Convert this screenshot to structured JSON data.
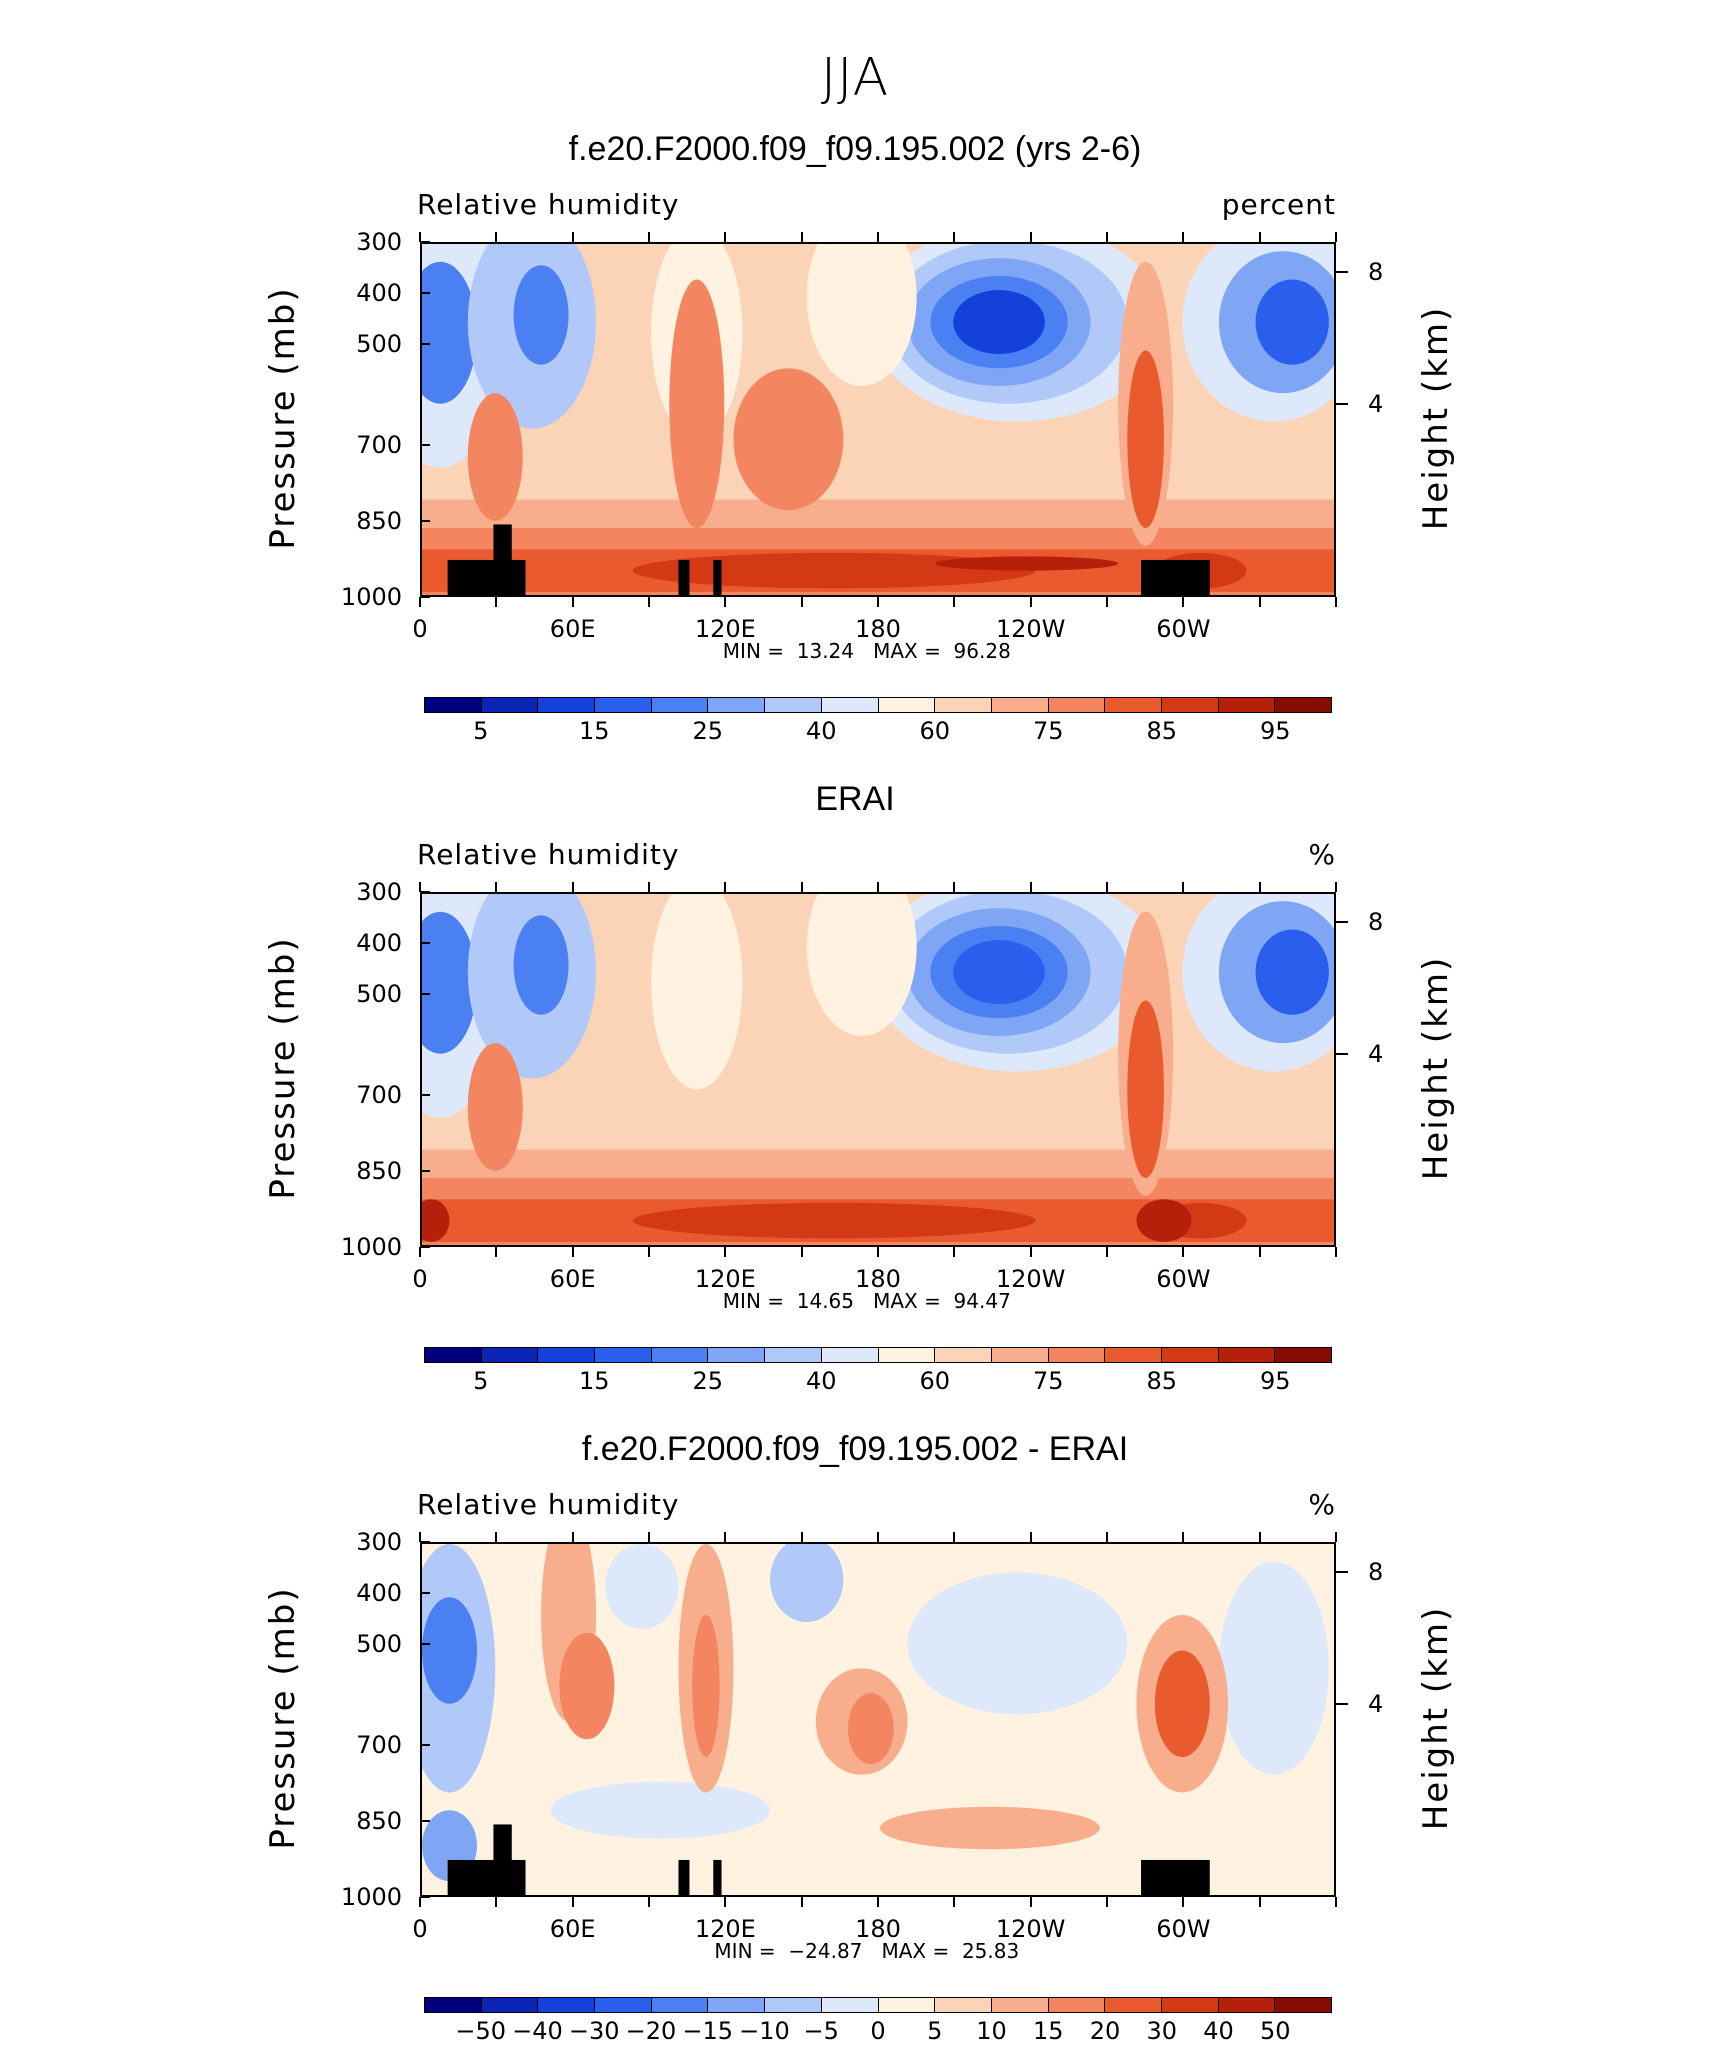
{
  "page": {
    "main_title": "JJA"
  },
  "colors": {
    "absolute_scale": [
      "#00007f",
      "#0a25b4",
      "#1440dc",
      "#2a5fee",
      "#4a80f2",
      "#7ea6f5",
      "#b0c9f8",
      "#dde8fb",
      "#fff2e0",
      "#fbd3b6",
      "#f8ae8c",
      "#f48561",
      "#ea5a2f",
      "#d33914",
      "#b4200a",
      "#860d00"
    ],
    "difference_scale": [
      "#00007f",
      "#0a25b4",
      "#1440dc",
      "#2a5fee",
      "#4a80f2",
      "#7ea6f5",
      "#b0c9f8",
      "#dde8fb",
      "#fff2e0",
      "#fbd3b6",
      "#f8ae8c",
      "#f48561",
      "#ea5a2f",
      "#d33914",
      "#b4200a",
      "#860d00"
    ],
    "terrain": "#000000"
  },
  "chart_data": [
    {
      "type": "heatmap",
      "title": "f.e20.F2000.f09_f09.195.002 (yrs 2-6)",
      "variable": "Relative humidity",
      "units": "percent",
      "xlabel": "",
      "ylabel": "Pressure (mb)",
      "ylabel_right": "Height (km)",
      "x_ticks": [
        "0",
        "60E",
        "120E",
        "180",
        "120W",
        "60W"
      ],
      "y_ticks": [
        "300",
        "400",
        "500",
        "700",
        "850",
        "1000"
      ],
      "y_ticks_right": [
        "8",
        "4"
      ],
      "min_label": "MIN =",
      "min": "13.24",
      "max_label": "MAX =",
      "max": "96.28",
      "colorbar_labels": [
        "5",
        "15",
        "25",
        "40",
        "60",
        "75",
        "85",
        "95"
      ],
      "has_terrain_mask": true
    },
    {
      "type": "heatmap",
      "title": "ERAI",
      "variable": "Relative humidity",
      "units": "%",
      "xlabel": "",
      "ylabel": "Pressure (mb)",
      "ylabel_right": "Height (km)",
      "x_ticks": [
        "0",
        "60E",
        "120E",
        "180",
        "120W",
        "60W"
      ],
      "y_ticks": [
        "300",
        "400",
        "500",
        "700",
        "850",
        "1000"
      ],
      "y_ticks_right": [
        "8",
        "4"
      ],
      "min_label": "MIN =",
      "min": "14.65",
      "max_label": "MAX =",
      "max": "94.47",
      "colorbar_labels": [
        "5",
        "15",
        "25",
        "40",
        "60",
        "75",
        "85",
        "95"
      ],
      "has_terrain_mask": false
    },
    {
      "type": "heatmap",
      "title": "f.e20.F2000.f09_f09.195.002 - ERAI",
      "variable": "Relative humidity",
      "units": "%",
      "xlabel": "",
      "ylabel": "Pressure (mb)",
      "ylabel_right": "Height (km)",
      "x_ticks": [
        "0",
        "60E",
        "120E",
        "180",
        "120W",
        "60W"
      ],
      "y_ticks": [
        "300",
        "400",
        "500",
        "700",
        "850",
        "1000"
      ],
      "y_ticks_right": [
        "8",
        "4"
      ],
      "min_label": "MIN =",
      "min": "−24.87",
      "max_label": "MAX =",
      "max": "25.83",
      "colorbar_labels": [
        "−50",
        "−40",
        "−30",
        "−20",
        "−15",
        "−10",
        "−5",
        "0",
        "5",
        "10",
        "15",
        "20",
        "30",
        "40",
        "50"
      ],
      "has_terrain_mask": true
    }
  ]
}
